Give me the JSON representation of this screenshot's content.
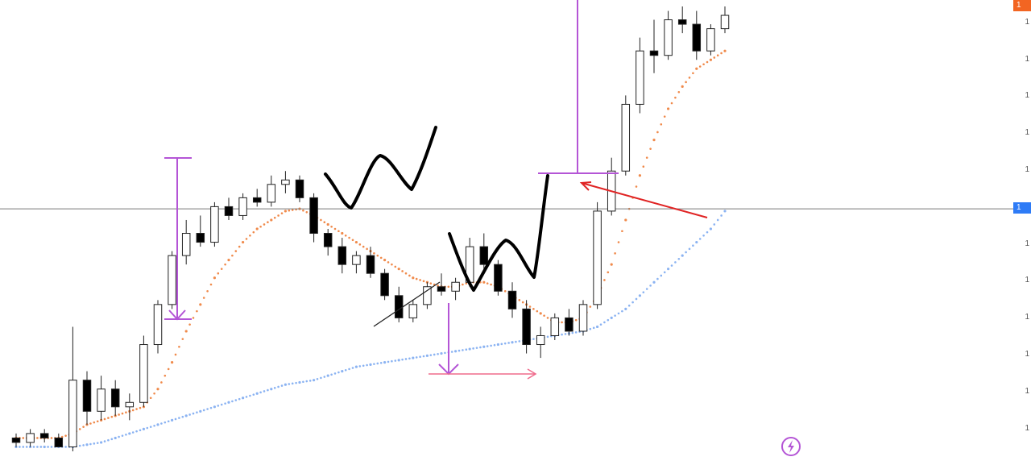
{
  "colors": {
    "bull_candle": "#ffffff",
    "bear_candle": "#000000",
    "highlight_candle": "#c8922e",
    "fast_ma": "#f08a4b",
    "slow_ma": "#8bb3f2",
    "hline": "#777777",
    "annotation_purple": "#b455d6",
    "annotation_pink": "#ef6b8c",
    "annotation_red_arrow": "#e02424",
    "drawing_black": "#000000",
    "axis_badge_top": "#f26522",
    "axis_badge_current": "#2e7bf6"
  },
  "price_axis": {
    "tick_labels": [
      "1",
      "1",
      "1",
      "1",
      "1",
      "1",
      "1",
      "1",
      "1",
      "1",
      "1",
      "1"
    ],
    "top_badge_text": "1",
    "current_badge_text": "1"
  },
  "icons": {
    "flash": "lightning-bolt-icon"
  },
  "chart_data": {
    "type": "candlestick",
    "title": "",
    "xlabel": "",
    "ylabel": "",
    "grid": false,
    "legend": "none",
    "ylim": [
      0,
      100
    ],
    "note_units": "price axis labels are truncated in the screenshot; values are relative price levels",
    "horizontal_line_level": 54.5,
    "candles": [
      {
        "o": 3,
        "h": 4,
        "l": 1,
        "c": 2
      },
      {
        "o": 2,
        "h": 5,
        "l": 1,
        "c": 4
      },
      {
        "o": 4,
        "h": 5,
        "l": 2,
        "c": 3
      },
      {
        "o": 3,
        "h": 4,
        "l": 1,
        "c": 1
      },
      {
        "o": 1,
        "h": 28,
        "l": 0,
        "c": 16
      },
      {
        "o": 16,
        "h": 18,
        "l": 6,
        "c": 9
      },
      {
        "o": 9,
        "h": 17,
        "l": 7,
        "c": 14
      },
      {
        "o": 14,
        "h": 16,
        "l": 8,
        "c": 10
      },
      {
        "o": 10,
        "h": 13,
        "l": 7,
        "c": 11
      },
      {
        "o": 11,
        "h": 26,
        "l": 10,
        "c": 24
      },
      {
        "o": 24,
        "h": 34,
        "l": 22,
        "c": 33
      },
      {
        "o": 33,
        "h": 45,
        "l": 32,
        "c": 44
      },
      {
        "o": 44,
        "h": 52,
        "l": 42,
        "c": 49
      },
      {
        "o": 49,
        "h": 53,
        "l": 46,
        "c": 47
      },
      {
        "o": 47,
        "h": 56,
        "l": 46,
        "c": 55
      },
      {
        "o": 55,
        "h": 57,
        "l": 52,
        "c": 53
      },
      {
        "o": 53,
        "h": 58,
        "l": 52,
        "c": 57
      },
      {
        "o": 57,
        "h": 59,
        "l": 55,
        "c": 56
      },
      {
        "o": 56,
        "h": 62,
        "l": 55,
        "c": 60
      },
      {
        "o": 60,
        "h": 63,
        "l": 58,
        "c": 61
      },
      {
        "o": 61,
        "h": 62,
        "l": 56,
        "c": 57
      },
      {
        "o": 57,
        "h": 58,
        "l": 47,
        "c": 49
      },
      {
        "o": 49,
        "h": 50,
        "l": 44,
        "c": 46
      },
      {
        "o": 46,
        "h": 48,
        "l": 40,
        "c": 42
      },
      {
        "o": 42,
        "h": 45,
        "l": 40,
        "c": 44
      },
      {
        "o": 44,
        "h": 46,
        "l": 39,
        "c": 40
      },
      {
        "o": 40,
        "h": 41,
        "l": 34,
        "c": 35
      },
      {
        "o": 35,
        "h": 37,
        "l": 29,
        "c": 30
      },
      {
        "o": 30,
        "h": 34,
        "l": 29,
        "c": 33
      },
      {
        "o": 33,
        "h": 38,
        "l": 32,
        "c": 37
      },
      {
        "o": 37,
        "h": 40,
        "l": 35,
        "c": 36
      },
      {
        "o": 36,
        "h": 39,
        "l": 34,
        "c": 38
      },
      {
        "o": 38,
        "h": 48,
        "l": 37,
        "c": 46
      },
      {
        "o": 46,
        "h": 49,
        "l": 41,
        "c": 42
      },
      {
        "o": 42,
        "h": 43,
        "l": 35,
        "c": 36
      },
      {
        "o": 36,
        "h": 38,
        "l": 30,
        "c": 32
      },
      {
        "o": 32,
        "h": 34,
        "l": 22,
        "c": 24
      },
      {
        "o": 24,
        "h": 28,
        "l": 21,
        "c": 26
      },
      {
        "o": 26,
        "h": 31,
        "l": 25,
        "c": 30
      },
      {
        "o": 30,
        "h": 32,
        "l": 26,
        "c": 27
      },
      {
        "o": 27,
        "h": 34,
        "l": 26,
        "c": 33
      },
      {
        "o": 33,
        "h": 56,
        "l": 32,
        "c": 54
      },
      {
        "o": 54,
        "h": 66,
        "l": 53,
        "c": 63
      },
      {
        "o": 63,
        "h": 80,
        "l": 62,
        "c": 78
      },
      {
        "o": 78,
        "h": 93,
        "l": 76,
        "c": 90
      },
      {
        "o": 90,
        "h": 97,
        "l": 85,
        "c": 89
      },
      {
        "o": 89,
        "h": 99,
        "l": 88,
        "c": 97
      },
      {
        "o": 97,
        "h": 100,
        "l": 94,
        "c": 96
      },
      {
        "o": 96,
        "h": 99,
        "l": 88,
        "c": 90
      },
      {
        "o": 90,
        "h": 96,
        "l": 89,
        "c": 95
      },
      {
        "o": 95,
        "h": 100,
        "l": 94,
        "c": 98
      }
    ],
    "fast_ma": [
      3,
      3,
      3,
      3,
      4,
      6,
      7,
      8,
      9,
      10,
      14,
      20,
      27,
      33,
      39,
      43,
      47,
      50,
      52,
      54,
      54.5,
      53,
      51,
      49,
      47,
      45,
      43,
      41,
      39,
      38,
      37,
      37,
      38,
      38,
      37,
      35,
      33,
      31,
      29,
      29,
      30,
      35,
      42,
      52,
      62,
      70,
      77,
      82,
      86,
      88,
      90
    ],
    "slow_ma": [
      1,
      1,
      1,
      1,
      1,
      1.5,
      2,
      3,
      4,
      5,
      6,
      7,
      8,
      9,
      10,
      11,
      12,
      13,
      14,
      15,
      15.5,
      16,
      17,
      18,
      19,
      19.5,
      20,
      20.5,
      21,
      21.5,
      22,
      22.5,
      23,
      23.5,
      24,
      24.5,
      25,
      25.5,
      26,
      26.5,
      27,
      28,
      30,
      32,
      35,
      38,
      41,
      44,
      47,
      50,
      54
    ],
    "annotations": [
      {
        "type": "horizontal-line",
        "level": 54.5
      },
      {
        "type": "vertical-measure",
        "label": "",
        "color": "purple"
      },
      {
        "type": "hand-drawn-W",
        "label": ""
      },
      {
        "type": "arrow",
        "color": "red",
        "label": ""
      }
    ]
  }
}
